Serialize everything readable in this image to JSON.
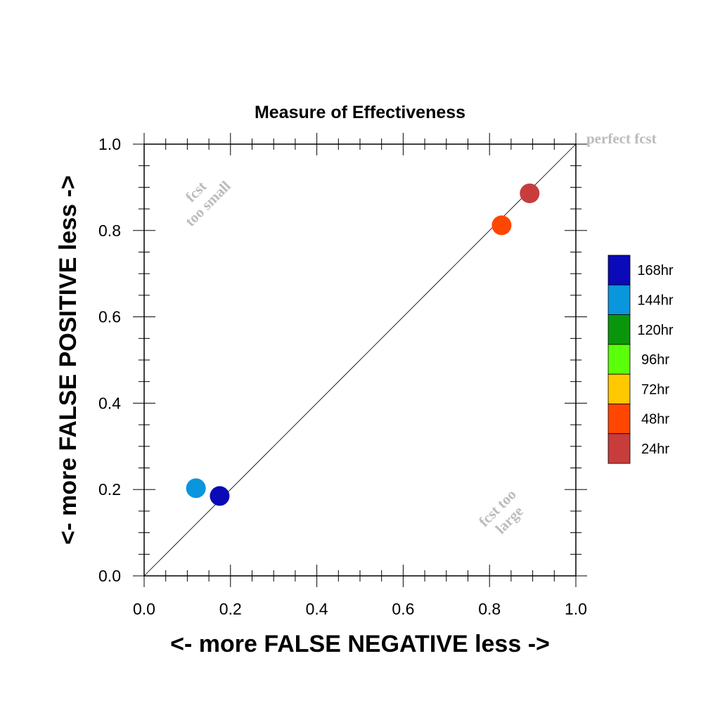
{
  "chart_data": {
    "type": "scatter",
    "title": "Measure of Effectiveness",
    "xlabel": "<- more   FALSE NEGATIVE   less ->",
    "ylabel": "<- more   FALSE POSITIVE   less ->",
    "xlim": [
      0.0,
      1.0
    ],
    "ylim": [
      0.0,
      1.0
    ],
    "xticks": [
      "0.0",
      "0.2",
      "0.4",
      "0.6",
      "0.8",
      "1.0"
    ],
    "yticks": [
      "0.0",
      "0.2",
      "0.4",
      "0.6",
      "0.8",
      "1.0"
    ],
    "grid": false,
    "diagonal_line": true,
    "annotations": {
      "perfect": "perfect fcst",
      "too_small_line1": "fcst",
      "too_small_line2": "too small",
      "too_large_line1": "fcst too",
      "too_large_line2": "large"
    },
    "legend": {
      "placement": "right",
      "entries": [
        {
          "label": "168hr",
          "color": "#0a0ab8"
        },
        {
          "label": "144hr",
          "color": "#0a96dc"
        },
        {
          "label": "120hr",
          "color": "#0a960a"
        },
        {
          "label": "96hr",
          "color": "#5aff0a"
        },
        {
          "label": "72hr",
          "color": "#ffc800"
        },
        {
          "label": "48hr",
          "color": "#ff4600"
        },
        {
          "label": "24hr",
          "color": "#c83c3c"
        }
      ]
    },
    "points": [
      {
        "series": "24hr",
        "x": 0.893,
        "y": 0.886,
        "color": "#c83c3c"
      },
      {
        "series": "48hr",
        "x": 0.828,
        "y": 0.812,
        "color": "#ff4600"
      },
      {
        "series": "144hr",
        "x": 0.12,
        "y": 0.203,
        "color": "#0a96dc"
      },
      {
        "series": "168hr",
        "x": 0.175,
        "y": 0.185,
        "color": "#0a0ab8"
      }
    ]
  }
}
